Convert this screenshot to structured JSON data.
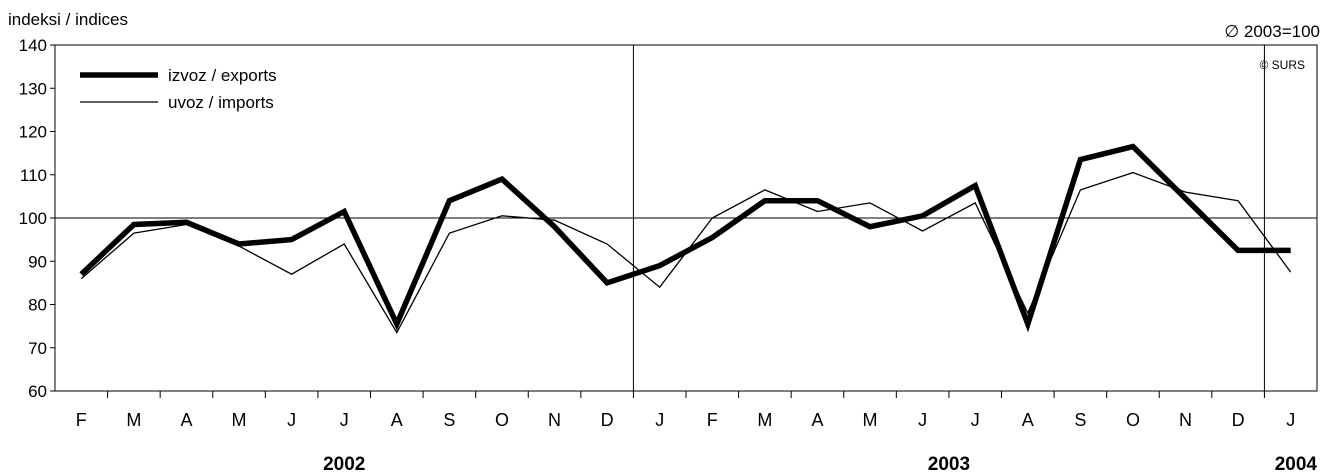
{
  "chart_data": {
    "type": "line",
    "ylabel": "indeksi / indices",
    "note": "∅ 2003=100",
    "credit": "© SURS",
    "ylim": [
      60,
      140
    ],
    "yticks": [
      60,
      70,
      80,
      90,
      100,
      110,
      120,
      130,
      140
    ],
    "reference_line": 100,
    "categories": [
      "F",
      "M",
      "A",
      "M",
      "J",
      "J",
      "A",
      "S",
      "O",
      "N",
      "D",
      "J",
      "F",
      "M",
      "A",
      "M",
      "J",
      "J",
      "A",
      "S",
      "O",
      "N",
      "D",
      "J"
    ],
    "year_labels": [
      {
        "label": "2002",
        "start": 0,
        "end": 10
      },
      {
        "label": "2003",
        "start": 11,
        "end": 22
      },
      {
        "label": "2004",
        "start": 23,
        "end": 23
      }
    ],
    "year_dividers_after": [
      10,
      22
    ],
    "series": [
      {
        "name": "izvoz / exports",
        "style": "thick",
        "values": [
          87,
          98.5,
          99,
          94,
          95,
          101.5,
          75.5,
          104,
          109,
          98,
          85,
          89,
          95.5,
          104,
          104,
          98,
          100.5,
          107.5,
          75.5,
          113.5,
          116.5,
          104.5,
          92.5,
          92.5
        ]
      },
      {
        "name": "uvoz / imports",
        "style": "thin",
        "values": [
          86,
          96.5,
          98.5,
          93.5,
          87,
          94,
          73.5,
          96.5,
          100.5,
          99.5,
          94,
          84,
          100,
          106.5,
          101.5,
          103.5,
          97,
          103.5,
          78,
          106.5,
          110.5,
          106,
          104,
          87.5
        ]
      }
    ],
    "grid": false,
    "legend_position": "top-left"
  }
}
